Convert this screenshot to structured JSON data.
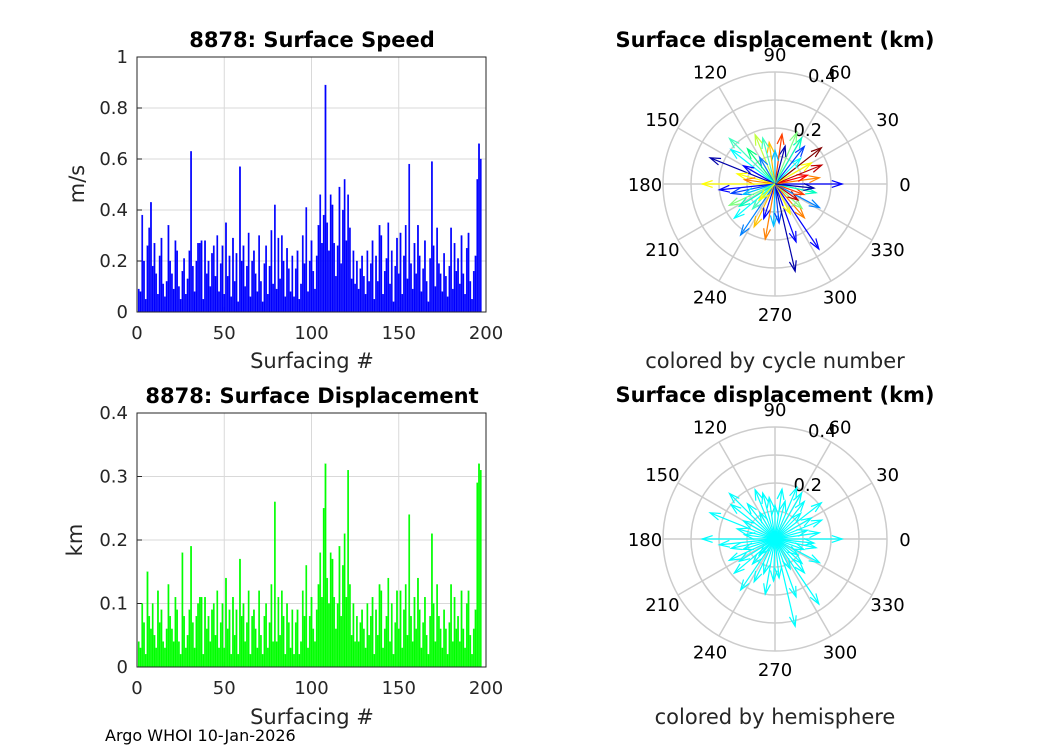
{
  "footer": "Argo WHOI 10-Jan-2026",
  "colors": {
    "speed_bars": "#0000ff",
    "displacement_bars": "#00ff00",
    "hemisphere_arrows": "#00ffff",
    "grid": "#d9d9d9",
    "polar_grid": "#cccccc"
  },
  "chart_data": [
    {
      "type": "bar",
      "title": "8878: Surface Speed",
      "xlabel": "Surfacing #",
      "ylabel": "m/s",
      "xlim": [
        0,
        200
      ],
      "ylim": [
        0,
        1
      ],
      "xticks": [
        "0",
        "50",
        "100",
        "150",
        "200"
      ],
      "yticks": [
        "0",
        "0.2",
        "0.4",
        "0.6",
        "0.8",
        "1"
      ],
      "peaks": [
        {
          "x": 30,
          "y": 0.63
        },
        {
          "x": 58,
          "y": 0.57
        },
        {
          "x": 107,
          "y": 0.89
        },
        {
          "x": 155,
          "y": 0.58
        },
        {
          "x": 169,
          "y": 0.59
        },
        {
          "x": 201,
          "y": 0.66
        }
      ],
      "values": [
        0.09,
        0.08,
        0.38,
        0.2,
        0.05,
        0.26,
        0.33,
        0.43,
        0.18,
        0.27,
        0.15,
        0.07,
        0.22,
        0.29,
        0.11,
        0.06,
        0.12,
        0.34,
        0.2,
        0.15,
        0.09,
        0.28,
        0.24,
        0.1,
        0.05,
        0.16,
        0.21,
        0.07,
        0.13,
        0.24,
        0.63,
        0.18,
        0.08,
        0.2,
        0.27,
        0.27,
        0.28,
        0.05,
        0.28,
        0.15,
        0.2,
        0.1,
        0.23,
        0.26,
        0.14,
        0.3,
        0.08,
        0.19,
        0.26,
        0.07,
        0.35,
        0.14,
        0.22,
        0.06,
        0.29,
        0.12,
        0.23,
        0.04,
        0.57,
        0.2,
        0.26,
        0.1,
        0.18,
        0.31,
        0.06,
        0.2,
        0.24,
        0.15,
        0.08,
        0.3,
        0.12,
        0.04,
        0.19,
        0.26,
        0.07,
        0.18,
        0.32,
        0.11,
        0.42,
        0.09,
        0.29,
        0.13,
        0.3,
        0.2,
        0.06,
        0.25,
        0.17,
        0.08,
        0.22,
        0.06,
        0.17,
        0.24,
        0.05,
        0.11,
        0.3,
        0.19,
        0.41,
        0.08,
        0.2,
        0.28,
        0.16,
        0.09,
        0.22,
        0.34,
        0.46,
        0.27,
        0.38,
        0.89,
        0.35,
        0.24,
        0.46,
        0.42,
        0.27,
        0.14,
        0.26,
        0.49,
        0.19,
        0.4,
        0.52,
        0.28,
        0.46,
        0.33,
        0.13,
        0.24,
        0.11,
        0.2,
        0.09,
        0.17,
        0.22,
        0.14,
        0.07,
        0.24,
        0.12,
        0.19,
        0.28,
        0.05,
        0.22,
        0.12,
        0.34,
        0.3,
        0.07,
        0.16,
        0.21,
        0.35,
        0.11,
        0.24,
        0.04,
        0.18,
        0.29,
        0.15,
        0.31,
        0.07,
        0.22,
        0.34,
        0.13,
        0.58,
        0.19,
        0.09,
        0.27,
        0.15,
        0.34,
        0.22,
        0.08,
        0.17,
        0.28,
        0.12,
        0.04,
        0.21,
        0.59,
        0.26,
        0.1,
        0.33,
        0.19,
        0.15,
        0.08,
        0.23,
        0.14,
        0.06,
        0.18,
        0.33,
        0.09,
        0.27,
        0.16,
        0.21,
        0.11,
        0.3,
        0.15,
        0.07,
        0.25,
        0.31,
        0.12,
        0.05,
        0.16,
        0.22,
        0.52,
        0.66,
        0.6
      ]
    },
    {
      "type": "bar",
      "title": "8878: Surface Displacement",
      "xlabel": "Surfacing #",
      "ylabel": "km",
      "xlim": [
        0,
        200
      ],
      "ylim": [
        0,
        0.4
      ],
      "xticks": [
        "0",
        "50",
        "100",
        "150",
        "200"
      ],
      "yticks": [
        "0",
        "0.1",
        "0.2",
        "0.3",
        "0.4"
      ],
      "values": [
        0.04,
        0.03,
        0.1,
        0.07,
        0.02,
        0.15,
        0.08,
        0.06,
        0.1,
        0.05,
        0.03,
        0.12,
        0.07,
        0.09,
        0.04,
        0.03,
        0.06,
        0.13,
        0.08,
        0.06,
        0.04,
        0.11,
        0.09,
        0.04,
        0.02,
        0.18,
        0.08,
        0.03,
        0.05,
        0.09,
        0.19,
        0.07,
        0.03,
        0.08,
        0.1,
        0.11,
        0.11,
        0.02,
        0.11,
        0.06,
        0.08,
        0.04,
        0.09,
        0.1,
        0.05,
        0.12,
        0.03,
        0.07,
        0.1,
        0.03,
        0.14,
        0.06,
        0.09,
        0.02,
        0.11,
        0.05,
        0.09,
        0.02,
        0.17,
        0.08,
        0.1,
        0.04,
        0.07,
        0.12,
        0.02,
        0.08,
        0.09,
        0.06,
        0.03,
        0.12,
        0.05,
        0.02,
        0.08,
        0.1,
        0.03,
        0.07,
        0.13,
        0.04,
        0.26,
        0.04,
        0.11,
        0.05,
        0.12,
        0.08,
        0.02,
        0.1,
        0.07,
        0.03,
        0.09,
        0.02,
        0.07,
        0.09,
        0.02,
        0.04,
        0.12,
        0.08,
        0.16,
        0.03,
        0.08,
        0.11,
        0.06,
        0.04,
        0.09,
        0.13,
        0.18,
        0.11,
        0.25,
        0.32,
        0.14,
        0.1,
        0.18,
        0.17,
        0.11,
        0.06,
        0.1,
        0.19,
        0.08,
        0.16,
        0.21,
        0.11,
        0.31,
        0.13,
        0.05,
        0.1,
        0.04,
        0.08,
        0.04,
        0.07,
        0.09,
        0.06,
        0.03,
        0.1,
        0.05,
        0.08,
        0.11,
        0.02,
        0.09,
        0.05,
        0.13,
        0.12,
        0.03,
        0.06,
        0.08,
        0.14,
        0.04,
        0.1,
        0.02,
        0.07,
        0.12,
        0.06,
        0.12,
        0.03,
        0.09,
        0.13,
        0.05,
        0.24,
        0.08,
        0.04,
        0.11,
        0.06,
        0.14,
        0.09,
        0.03,
        0.07,
        0.11,
        0.05,
        0.02,
        0.08,
        0.21,
        0.1,
        0.04,
        0.13,
        0.08,
        0.06,
        0.03,
        0.09,
        0.06,
        0.02,
        0.07,
        0.13,
        0.04,
        0.11,
        0.06,
        0.08,
        0.04,
        0.12,
        0.06,
        0.03,
        0.1,
        0.12,
        0.05,
        0.02,
        0.06,
        0.09,
        0.29,
        0.32,
        0.31
      ]
    },
    {
      "type": "polar-compass",
      "title": "Surface displacement (km)",
      "caption": "colored by cycle number",
      "rmax": 0.4,
      "radial_labels": [
        "0.2",
        "0.4"
      ],
      "angle_labels": [
        "0",
        "30",
        "60",
        "90",
        "120",
        "150",
        "180",
        "210",
        "240",
        "270",
        "300",
        "330"
      ],
      "arrows": [
        {
          "angle": 0,
          "r": 0.24,
          "color": "#0000ff"
        },
        {
          "angle": 8,
          "r": 0.16,
          "color": "#ff8000"
        },
        {
          "angle": 15,
          "r": 0.12,
          "color": "#ff0000"
        },
        {
          "angle": 22,
          "r": 0.18,
          "color": "#c00000"
        },
        {
          "angle": 30,
          "r": 0.15,
          "color": "#ffff00"
        },
        {
          "angle": 38,
          "r": 0.21,
          "color": "#800000"
        },
        {
          "angle": 45,
          "r": 0.13,
          "color": "#00ffff"
        },
        {
          "angle": 52,
          "r": 0.17,
          "color": "#0040ff"
        },
        {
          "angle": 60,
          "r": 0.19,
          "color": "#00ffc0"
        },
        {
          "angle": 67,
          "r": 0.2,
          "color": "#80ff80"
        },
        {
          "angle": 75,
          "r": 0.14,
          "color": "#0000aa"
        },
        {
          "angle": 82,
          "r": 0.18,
          "color": "#ff4000"
        },
        {
          "angle": 90,
          "r": 0.12,
          "color": "#00c0ff"
        },
        {
          "angle": 98,
          "r": 0.15,
          "color": "#ffc000"
        },
        {
          "angle": 105,
          "r": 0.17,
          "color": "#40ffc0"
        },
        {
          "angle": 112,
          "r": 0.19,
          "color": "#c0ff40"
        },
        {
          "angle": 120,
          "r": 0.11,
          "color": "#0080ff"
        },
        {
          "angle": 128,
          "r": 0.16,
          "color": "#00ff80"
        },
        {
          "angle": 135,
          "r": 0.23,
          "color": "#40ffc0"
        },
        {
          "angle": 142,
          "r": 0.2,
          "color": "#00ffff"
        },
        {
          "angle": 150,
          "r": 0.13,
          "color": "#0000ff"
        },
        {
          "angle": 158,
          "r": 0.25,
          "color": "#0000aa"
        },
        {
          "angle": 165,
          "r": 0.14,
          "color": "#ffff00"
        },
        {
          "angle": 172,
          "r": 0.11,
          "color": "#ff8000"
        },
        {
          "angle": 180,
          "r": 0.26,
          "color": "#ffff00"
        },
        {
          "angle": 186,
          "r": 0.2,
          "color": "#0000ff"
        },
        {
          "angle": 192,
          "r": 0.16,
          "color": "#0040ff"
        },
        {
          "angle": 198,
          "r": 0.12,
          "color": "#00c0ff"
        },
        {
          "angle": 205,
          "r": 0.18,
          "color": "#80ff80"
        },
        {
          "angle": 212,
          "r": 0.15,
          "color": "#00ffc0"
        },
        {
          "angle": 220,
          "r": 0.19,
          "color": "#00ffff"
        },
        {
          "angle": 228,
          "r": 0.12,
          "color": "#40ffc0"
        },
        {
          "angle": 236,
          "r": 0.22,
          "color": "#0080ff"
        },
        {
          "angle": 244,
          "r": 0.17,
          "color": "#ffc000"
        },
        {
          "angle": 252,
          "r": 0.13,
          "color": "#0000ff"
        },
        {
          "angle": 260,
          "r": 0.2,
          "color": "#ff8000"
        },
        {
          "angle": 268,
          "r": 0.15,
          "color": "#00c0ff"
        },
        {
          "angle": 276,
          "r": 0.14,
          "color": "#0040ff"
        },
        {
          "angle": 283,
          "r": 0.32,
          "color": "#0000aa"
        },
        {
          "angle": 290,
          "r": 0.22,
          "color": "#0000ff"
        },
        {
          "angle": 297,
          "r": 0.12,
          "color": "#ffff00"
        },
        {
          "angle": 304,
          "r": 0.28,
          "color": "#0000ff"
        },
        {
          "angle": 311,
          "r": 0.16,
          "color": "#ff8000"
        },
        {
          "angle": 318,
          "r": 0.13,
          "color": "#80ff80"
        },
        {
          "angle": 325,
          "r": 0.1,
          "color": "#c00000"
        },
        {
          "angle": 332,
          "r": 0.18,
          "color": "#0080ff"
        },
        {
          "angle": 340,
          "r": 0.11,
          "color": "#ff4000"
        },
        {
          "angle": 348,
          "r": 0.15,
          "color": "#00ffc0"
        },
        {
          "angle": 354,
          "r": 0.14,
          "color": "#0000aa"
        },
        {
          "angle": 225,
          "r": 0.08,
          "color": "#ffff00"
        }
      ]
    },
    {
      "type": "polar-compass",
      "title": "Surface displacement (km)",
      "caption": "colored by hemisphere",
      "rmax": 0.4,
      "radial_labels": [
        "0.2",
        "0.4"
      ],
      "angle_labels": [
        "0",
        "30",
        "60",
        "90",
        "120",
        "150",
        "180",
        "210",
        "240",
        "270",
        "300",
        "330"
      ],
      "arrows": [
        {
          "angle": 0,
          "r": 0.24,
          "color": "#00ffff"
        },
        {
          "angle": 8,
          "r": 0.16,
          "color": "#00ffff"
        },
        {
          "angle": 15,
          "r": 0.12,
          "color": "#00ffff"
        },
        {
          "angle": 22,
          "r": 0.18,
          "color": "#00ffff"
        },
        {
          "angle": 30,
          "r": 0.15,
          "color": "#00ffff"
        },
        {
          "angle": 38,
          "r": 0.21,
          "color": "#00ffff"
        },
        {
          "angle": 45,
          "r": 0.13,
          "color": "#00ffff"
        },
        {
          "angle": 52,
          "r": 0.17,
          "color": "#00ffff"
        },
        {
          "angle": 60,
          "r": 0.19,
          "color": "#00ffff"
        },
        {
          "angle": 67,
          "r": 0.2,
          "color": "#00ffff"
        },
        {
          "angle": 75,
          "r": 0.14,
          "color": "#00ffff"
        },
        {
          "angle": 82,
          "r": 0.18,
          "color": "#00ffff"
        },
        {
          "angle": 90,
          "r": 0.12,
          "color": "#00ffff"
        },
        {
          "angle": 98,
          "r": 0.15,
          "color": "#00ffff"
        },
        {
          "angle": 105,
          "r": 0.17,
          "color": "#00ffff"
        },
        {
          "angle": 112,
          "r": 0.19,
          "color": "#00ffff"
        },
        {
          "angle": 120,
          "r": 0.11,
          "color": "#00ffff"
        },
        {
          "angle": 128,
          "r": 0.16,
          "color": "#00ffff"
        },
        {
          "angle": 135,
          "r": 0.23,
          "color": "#00ffff"
        },
        {
          "angle": 142,
          "r": 0.2,
          "color": "#00ffff"
        },
        {
          "angle": 150,
          "r": 0.13,
          "color": "#00ffff"
        },
        {
          "angle": 158,
          "r": 0.25,
          "color": "#00ffff"
        },
        {
          "angle": 165,
          "r": 0.14,
          "color": "#00ffff"
        },
        {
          "angle": 172,
          "r": 0.11,
          "color": "#00ffff"
        },
        {
          "angle": 180,
          "r": 0.26,
          "color": "#00ffff"
        },
        {
          "angle": 186,
          "r": 0.2,
          "color": "#00ffff"
        },
        {
          "angle": 192,
          "r": 0.16,
          "color": "#00ffff"
        },
        {
          "angle": 198,
          "r": 0.12,
          "color": "#00ffff"
        },
        {
          "angle": 205,
          "r": 0.18,
          "color": "#00ffff"
        },
        {
          "angle": 212,
          "r": 0.15,
          "color": "#00ffff"
        },
        {
          "angle": 220,
          "r": 0.19,
          "color": "#00ffff"
        },
        {
          "angle": 228,
          "r": 0.12,
          "color": "#00ffff"
        },
        {
          "angle": 236,
          "r": 0.22,
          "color": "#00ffff"
        },
        {
          "angle": 244,
          "r": 0.17,
          "color": "#00ffff"
        },
        {
          "angle": 252,
          "r": 0.13,
          "color": "#00ffff"
        },
        {
          "angle": 260,
          "r": 0.2,
          "color": "#00ffff"
        },
        {
          "angle": 268,
          "r": 0.15,
          "color": "#00ffff"
        },
        {
          "angle": 276,
          "r": 0.14,
          "color": "#00ffff"
        },
        {
          "angle": 283,
          "r": 0.32,
          "color": "#00ffff"
        },
        {
          "angle": 290,
          "r": 0.22,
          "color": "#00ffff"
        },
        {
          "angle": 297,
          "r": 0.12,
          "color": "#00ffff"
        },
        {
          "angle": 304,
          "r": 0.28,
          "color": "#00ffff"
        },
        {
          "angle": 311,
          "r": 0.16,
          "color": "#00ffff"
        },
        {
          "angle": 318,
          "r": 0.13,
          "color": "#00ffff"
        },
        {
          "angle": 325,
          "r": 0.1,
          "color": "#00ffff"
        },
        {
          "angle": 332,
          "r": 0.18,
          "color": "#00ffff"
        },
        {
          "angle": 340,
          "r": 0.11,
          "color": "#00ffff"
        },
        {
          "angle": 348,
          "r": 0.15,
          "color": "#00ffff"
        },
        {
          "angle": 354,
          "r": 0.14,
          "color": "#00ffff"
        },
        {
          "angle": 225,
          "r": 0.08,
          "color": "#00ffff"
        }
      ]
    }
  ]
}
